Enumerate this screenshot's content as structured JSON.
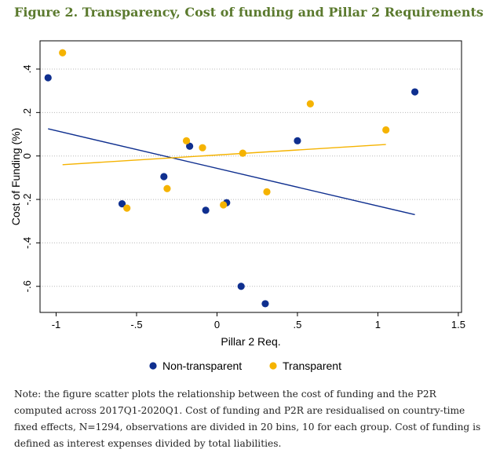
{
  "figure": {
    "title": "Figure 2. Transparency, Cost of funding and Pillar 2 Requirements",
    "note": "Note: the figure scatter plots the relationship between the cost of funding and the P2R computed across 2017Q1-2020Q1. Cost of funding and P2R are residualised on country-time fixed effects, N=1294, observations are divided in 20 bins, 10 for each group. Cost of funding is defined as interest expenses divided by total liabilities."
  },
  "colors": {
    "non_transparent": "#0f2f8f",
    "transparent": "#f5b301",
    "title": "#5b7a2e"
  },
  "chart_data": {
    "type": "scatter",
    "xlabel": "Pillar 2 Req.",
    "ylabel": "Cost of Funding (%)",
    "xlim": [
      -1.1,
      1.52
    ],
    "ylim": [
      -0.72,
      0.53
    ],
    "xticks": [
      -1,
      -0.5,
      0,
      0.5,
      1,
      1.5
    ],
    "xtick_labels": [
      "-1",
      "-.5",
      "0",
      ".5",
      "1",
      "1.5"
    ],
    "yticks": [
      -0.6,
      -0.4,
      -0.2,
      0,
      0.2,
      0.4
    ],
    "ytick_labels": [
      "-.6",
      "-.4",
      "-.2",
      "0",
      ".2",
      ".4"
    ],
    "grid": true,
    "legend_position": "bottom",
    "series": [
      {
        "name": "Non-transparent",
        "color": "#0f2f8f",
        "points": [
          {
            "x": -1.05,
            "y": 0.36
          },
          {
            "x": -0.59,
            "y": -0.22
          },
          {
            "x": -0.33,
            "y": -0.095
          },
          {
            "x": -0.17,
            "y": 0.045
          },
          {
            "x": -0.07,
            "y": -0.25
          },
          {
            "x": 0.06,
            "y": -0.215
          },
          {
            "x": 0.15,
            "y": -0.6
          },
          {
            "x": 0.3,
            "y": -0.68
          },
          {
            "x": 0.5,
            "y": 0.07
          },
          {
            "x": 1.23,
            "y": 0.295
          }
        ],
        "fit": {
          "x": [
            -1.05,
            1.23
          ],
          "y": [
            0.125,
            -0.27
          ]
        }
      },
      {
        "name": "Transparent",
        "color": "#f5b301",
        "points": [
          {
            "x": -0.96,
            "y": 0.475
          },
          {
            "x": -0.56,
            "y": -0.24
          },
          {
            "x": -0.31,
            "y": -0.15
          },
          {
            "x": -0.19,
            "y": 0.07
          },
          {
            "x": -0.09,
            "y": 0.038
          },
          {
            "x": 0.04,
            "y": -0.225
          },
          {
            "x": 0.16,
            "y": 0.013
          },
          {
            "x": 0.31,
            "y": -0.165
          },
          {
            "x": 0.58,
            "y": 0.24
          },
          {
            "x": 1.05,
            "y": 0.12
          }
        ],
        "fit": {
          "x": [
            -0.96,
            1.05
          ],
          "y": [
            -0.04,
            0.053
          ]
        }
      }
    ]
  }
}
